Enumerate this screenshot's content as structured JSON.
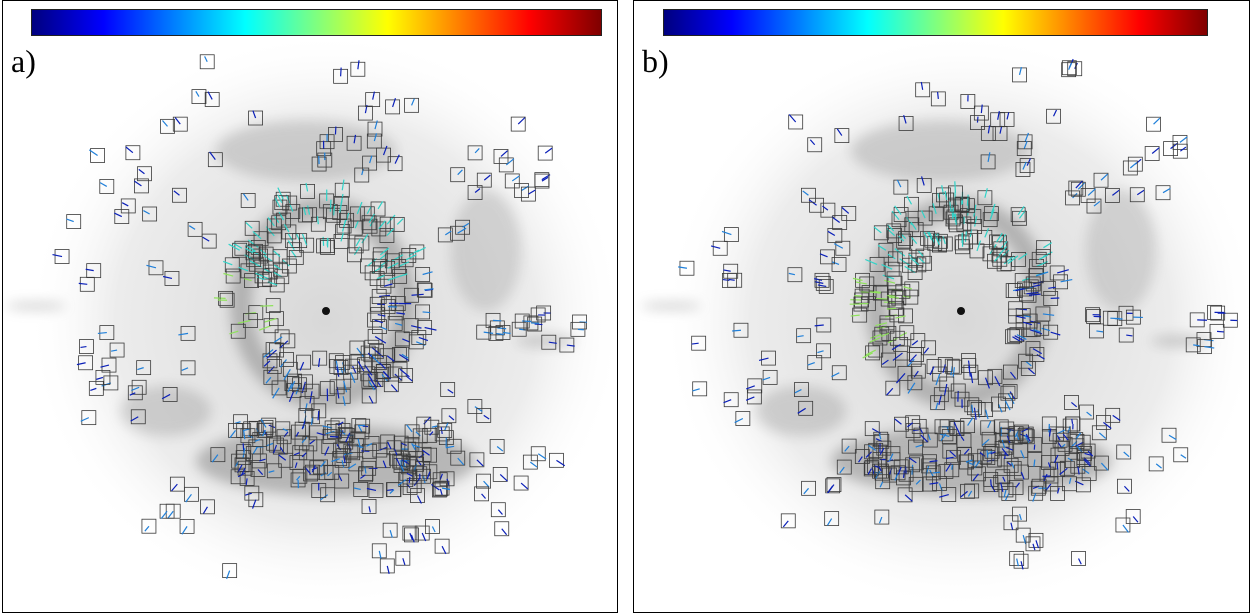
{
  "panels": [
    {
      "id": "a",
      "label": "a)"
    },
    {
      "id": "b",
      "label": "b)"
    }
  ],
  "colorbar": {
    "colormap": "jet",
    "stops": [
      "#00007f",
      "#0000ff",
      "#007fff",
      "#00ffff",
      "#7fff7f",
      "#ffff00",
      "#ff7f00",
      "#ff0000",
      "#7f0000"
    ]
  },
  "colors": {
    "background": "#ffffff",
    "nebula": "#8c8c8c",
    "box_stroke": "#3a3a3a",
    "vector_slow": "#0a1fb8",
    "vector_mid": "#1f7fd9",
    "vector_fast": "#2fd3c8",
    "vector_fastest": "#8ee35a"
  }
}
